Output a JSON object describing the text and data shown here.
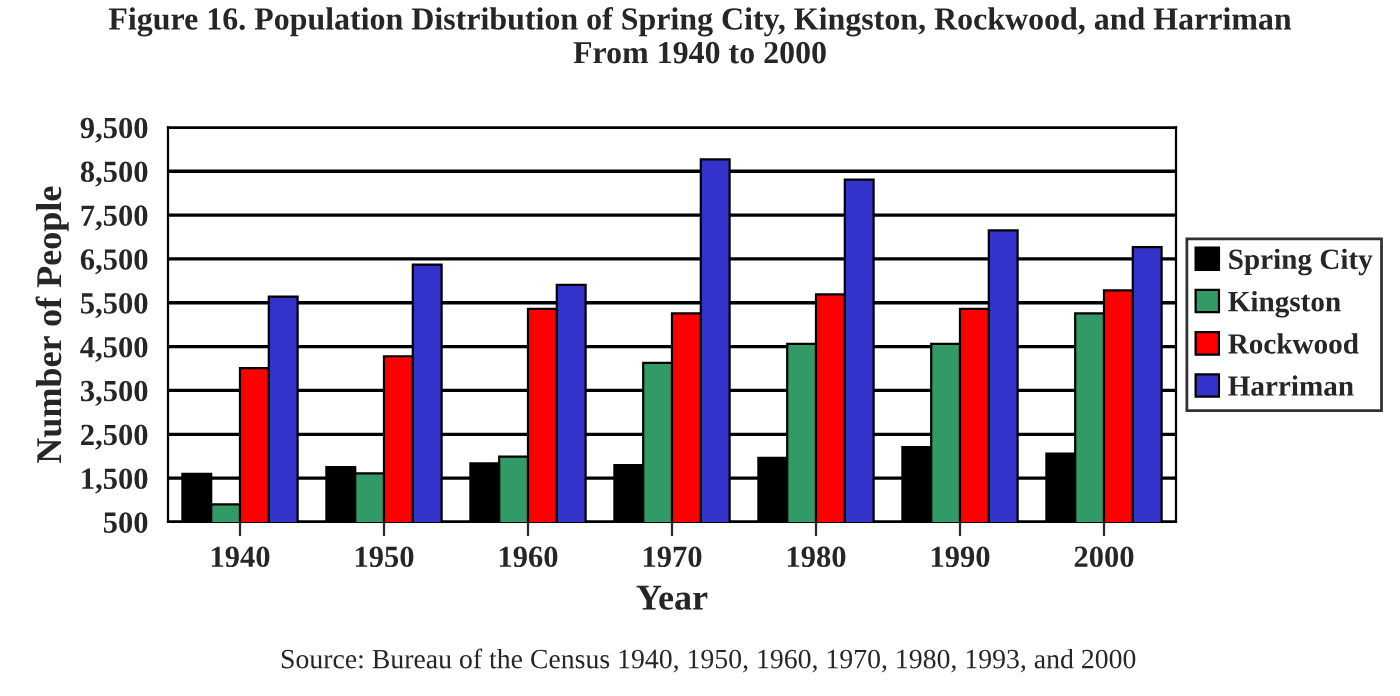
{
  "chart_data": {
    "type": "bar",
    "title": "Figure 16. Population Distribution of Spring City, Kingston, Rockwood, and Harriman\nFrom 1940 to 2000",
    "xlabel": "Year",
    "ylabel": "Number of People",
    "categories": [
      "1940",
      "1950",
      "1960",
      "1970",
      "1980",
      "1990",
      "2000"
    ],
    "series": [
      {
        "name": "Spring City",
        "color": "#000000",
        "values": [
          1600,
          1750,
          1840,
          1800,
          1960,
          2210,
          2060
        ]
      },
      {
        "name": "Kingston",
        "color": "#339966",
        "values": [
          900,
          1610,
          1990,
          4130,
          4560,
          4560,
          5260
        ]
      },
      {
        "name": "Rockwood",
        "color": "#ff0000",
        "values": [
          4010,
          4280,
          5360,
          5260,
          5690,
          5360,
          5780
        ]
      },
      {
        "name": "Harriman",
        "color": "#3333cc",
        "values": [
          5640,
          6370,
          5910,
          8770,
          8310,
          7150,
          6770
        ]
      }
    ],
    "ylim": [
      500,
      9500
    ],
    "yticks": [
      {
        "value": 500,
        "label": "500"
      },
      {
        "value": 1500,
        "label": "1,500"
      },
      {
        "value": 2500,
        "label": "2,500"
      },
      {
        "value": 3500,
        "label": "3,500"
      },
      {
        "value": 4500,
        "label": "4,500"
      },
      {
        "value": 5500,
        "label": "5,500"
      },
      {
        "value": 6500,
        "label": "6,500"
      },
      {
        "value": 7500,
        "label": "7,500"
      },
      {
        "value": 8500,
        "label": "8,500"
      },
      {
        "value": 9500,
        "label": "9,500"
      }
    ],
    "grid": "y",
    "legend": "right",
    "annotations": [
      "Source: Bureau of the Census 1940, 1950, 1960, 1970, 1980, 1993, and 2000"
    ]
  }
}
